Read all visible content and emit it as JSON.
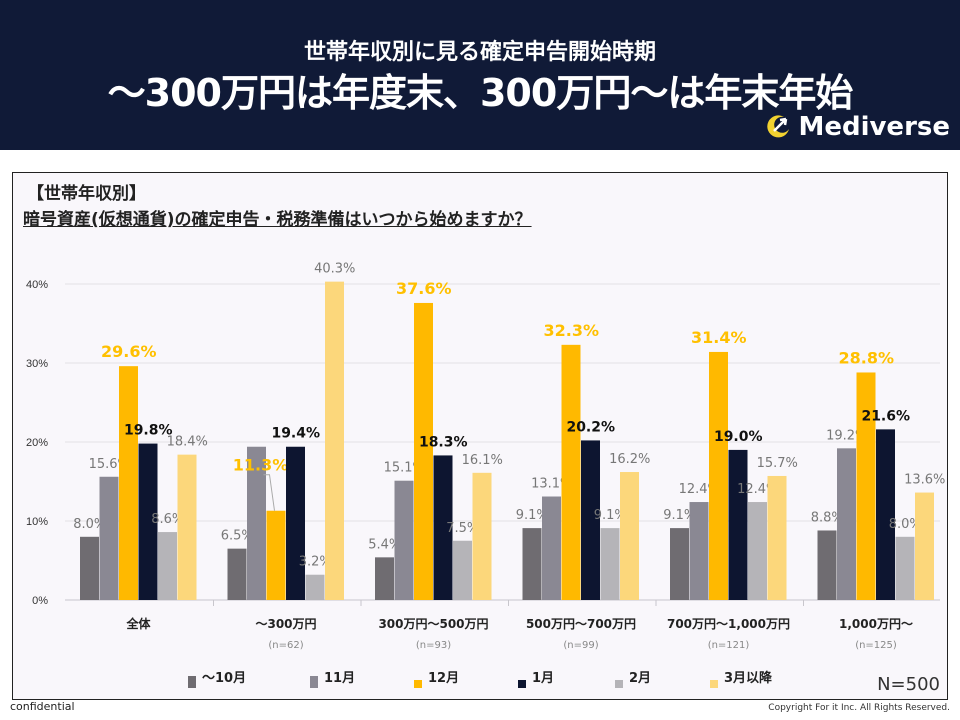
{
  "header": {
    "subtitle": "世帯年収別に見る確定申告開始時期",
    "title": "〜300万円は年度末、300万円〜は年末年始",
    "logo": "Mediverse"
  },
  "question": {
    "segment": "【世帯年収別】",
    "text": "暗号資産(仮想通貨)の確定申告・税務準備はいつから始めますか？"
  },
  "footer": {
    "left": "confidential",
    "right": "Copyright For it Inc. All Rights Reserved."
  },
  "chart_data": {
    "type": "bar",
    "ylim": [
      0,
      40
    ],
    "yticks": [
      "0%",
      "10%",
      "20%",
      "30%",
      "40%"
    ],
    "grid": true,
    "legend_position": "bottom",
    "sample": "N=500",
    "categories": [
      "全体",
      "〜300万円",
      "300万円〜500万円",
      "500万円〜700万円",
      "700万円〜1,000万円",
      "1,000万円〜"
    ],
    "category_n": [
      "",
      "(n=62)",
      "(n=93)",
      "(n=99)",
      "(n=121)",
      "(n=125)"
    ],
    "series": [
      {
        "name": "〜10月",
        "color": "#6f6c71",
        "values": [
          8.0,
          6.5,
          5.4,
          9.1,
          9.1,
          8.8
        ],
        "labels": [
          "8.0%",
          "6.5%",
          "5.4%",
          "9.1%",
          "9.1%",
          "8.8%"
        ]
      },
      {
        "name": "11月",
        "color": "#8a8893",
        "values": [
          15.6,
          19.4,
          15.1,
          13.1,
          12.4,
          19.2
        ],
        "labels": [
          "15.6%",
          null,
          "15.1%",
          "13.1%",
          "12.4%",
          "19.2%"
        ]
      },
      {
        "name": "12月",
        "color": "#ffb900",
        "values": [
          29.6,
          11.3,
          37.6,
          32.3,
          31.4,
          28.8
        ],
        "labels": [
          "29.6%",
          "11.3%",
          "37.6%",
          "32.3%",
          "31.4%",
          "28.8%"
        ]
      },
      {
        "name": "1月",
        "color": "#0d1530",
        "values": [
          19.8,
          19.4,
          18.3,
          20.2,
          19.0,
          21.6
        ],
        "labels": [
          "19.8%",
          "19.4%",
          "18.3%",
          "20.2%",
          "19.0%",
          "21.6%"
        ]
      },
      {
        "name": "2月",
        "color": "#b5b4b8",
        "values": [
          8.6,
          3.2,
          7.5,
          9.1,
          12.4,
          8.0
        ],
        "labels": [
          "8.6%",
          "3.2%",
          "7.5%",
          "9.1%",
          "12.4%",
          "8.0%"
        ]
      },
      {
        "name": "3月以降",
        "color": "#fcd77b",
        "values": [
          18.4,
          40.3,
          16.1,
          16.2,
          15.7,
          13.6
        ],
        "labels": [
          "18.4%",
          "40.3%",
          "16.1%",
          "16.2%",
          "15.7%",
          "13.6%"
        ]
      }
    ]
  }
}
